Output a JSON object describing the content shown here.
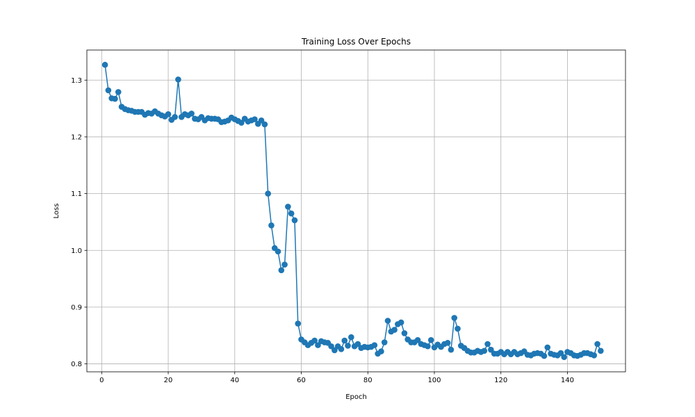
{
  "chart_data": {
    "type": "line",
    "title": "Training Loss Over Epochs",
    "xlabel": "Epoch",
    "ylabel": "Loss",
    "xlim": [
      -4.45,
      157.45
    ],
    "ylim": [
      0.786,
      1.353
    ],
    "grid": true,
    "marker": "circle",
    "x_ticks": [
      0,
      20,
      40,
      60,
      80,
      100,
      120,
      140
    ],
    "y_ticks": [
      0.8,
      0.9,
      1.0,
      1.1,
      1.2,
      1.3
    ],
    "x_tick_labels": [
      "0",
      "20",
      "40",
      "60",
      "80",
      "100",
      "120",
      "140"
    ],
    "y_tick_labels": [
      "0.8",
      "0.9",
      "1.0",
      "1.1",
      "1.2",
      "1.3"
    ],
    "color": "#1f77b4",
    "series": [
      {
        "x": [
          1,
          2,
          3,
          4,
          5,
          6,
          7,
          8,
          9,
          10,
          11,
          12,
          13,
          14,
          15,
          16,
          17,
          18,
          19,
          20,
          21,
          22,
          23,
          24,
          25,
          26,
          27,
          28,
          29,
          30,
          31,
          32,
          33,
          34,
          35,
          36,
          37,
          38,
          39,
          40,
          41,
          42,
          43,
          44,
          45,
          46,
          47,
          48,
          49,
          50,
          51,
          52,
          53,
          54,
          55,
          56,
          57,
          58,
          59,
          60,
          61,
          62,
          63,
          64,
          65,
          66,
          67,
          68,
          69,
          70,
          71,
          72,
          73,
          74,
          75,
          76,
          77,
          78,
          79,
          80,
          81,
          82,
          83,
          84,
          85,
          86,
          87,
          88,
          89,
          90,
          91,
          92,
          93,
          94,
          95,
          96,
          97,
          98,
          99,
          100,
          101,
          102,
          103,
          104,
          105,
          106,
          107,
          108,
          109,
          110,
          111,
          112,
          113,
          114,
          115,
          116,
          117,
          118,
          119,
          120,
          121,
          122,
          123,
          124,
          125,
          126,
          127,
          128,
          129,
          130,
          131,
          132,
          133,
          134,
          135,
          136,
          137,
          138,
          139,
          140,
          141,
          142,
          143,
          144,
          145,
          146,
          147,
          148,
          149,
          150
        ],
        "values": [
          1.327,
          1.282,
          1.268,
          1.267,
          1.279,
          1.253,
          1.249,
          1.247,
          1.246,
          1.244,
          1.244,
          1.244,
          1.239,
          1.242,
          1.241,
          1.245,
          1.241,
          1.238,
          1.236,
          1.24,
          1.23,
          1.235,
          1.301,
          1.235,
          1.24,
          1.238,
          1.241,
          1.232,
          1.231,
          1.235,
          1.229,
          1.233,
          1.232,
          1.232,
          1.231,
          1.226,
          1.227,
          1.229,
          1.234,
          1.231,
          1.228,
          1.225,
          1.232,
          1.227,
          1.229,
          1.231,
          1.223,
          1.229,
          1.222,
          1.1,
          1.044,
          1.004,
          0.998,
          0.965,
          0.975,
          1.077,
          1.065,
          1.053,
          0.871,
          0.843,
          0.838,
          0.833,
          0.837,
          0.841,
          0.833,
          0.84,
          0.838,
          0.837,
          0.831,
          0.824,
          0.831,
          0.826,
          0.841,
          0.832,
          0.847,
          0.831,
          0.835,
          0.828,
          0.83,
          0.829,
          0.83,
          0.833,
          0.818,
          0.822,
          0.838,
          0.876,
          0.857,
          0.86,
          0.87,
          0.873,
          0.854,
          0.843,
          0.838,
          0.838,
          0.842,
          0.835,
          0.833,
          0.831,
          0.842,
          0.829,
          0.834,
          0.83,
          0.835,
          0.837,
          0.825,
          0.881,
          0.862,
          0.832,
          0.828,
          0.823,
          0.82,
          0.82,
          0.823,
          0.821,
          0.823,
          0.835,
          0.825,
          0.818,
          0.818,
          0.821,
          0.817,
          0.821,
          0.817,
          0.821,
          0.817,
          0.819,
          0.822,
          0.816,
          0.815,
          0.818,
          0.819,
          0.818,
          0.814,
          0.829,
          0.818,
          0.816,
          0.815,
          0.819,
          0.812,
          0.821,
          0.819,
          0.815,
          0.814,
          0.816,
          0.819,
          0.819,
          0.817,
          0.815,
          0.835,
          0.823
        ]
      }
    ]
  }
}
